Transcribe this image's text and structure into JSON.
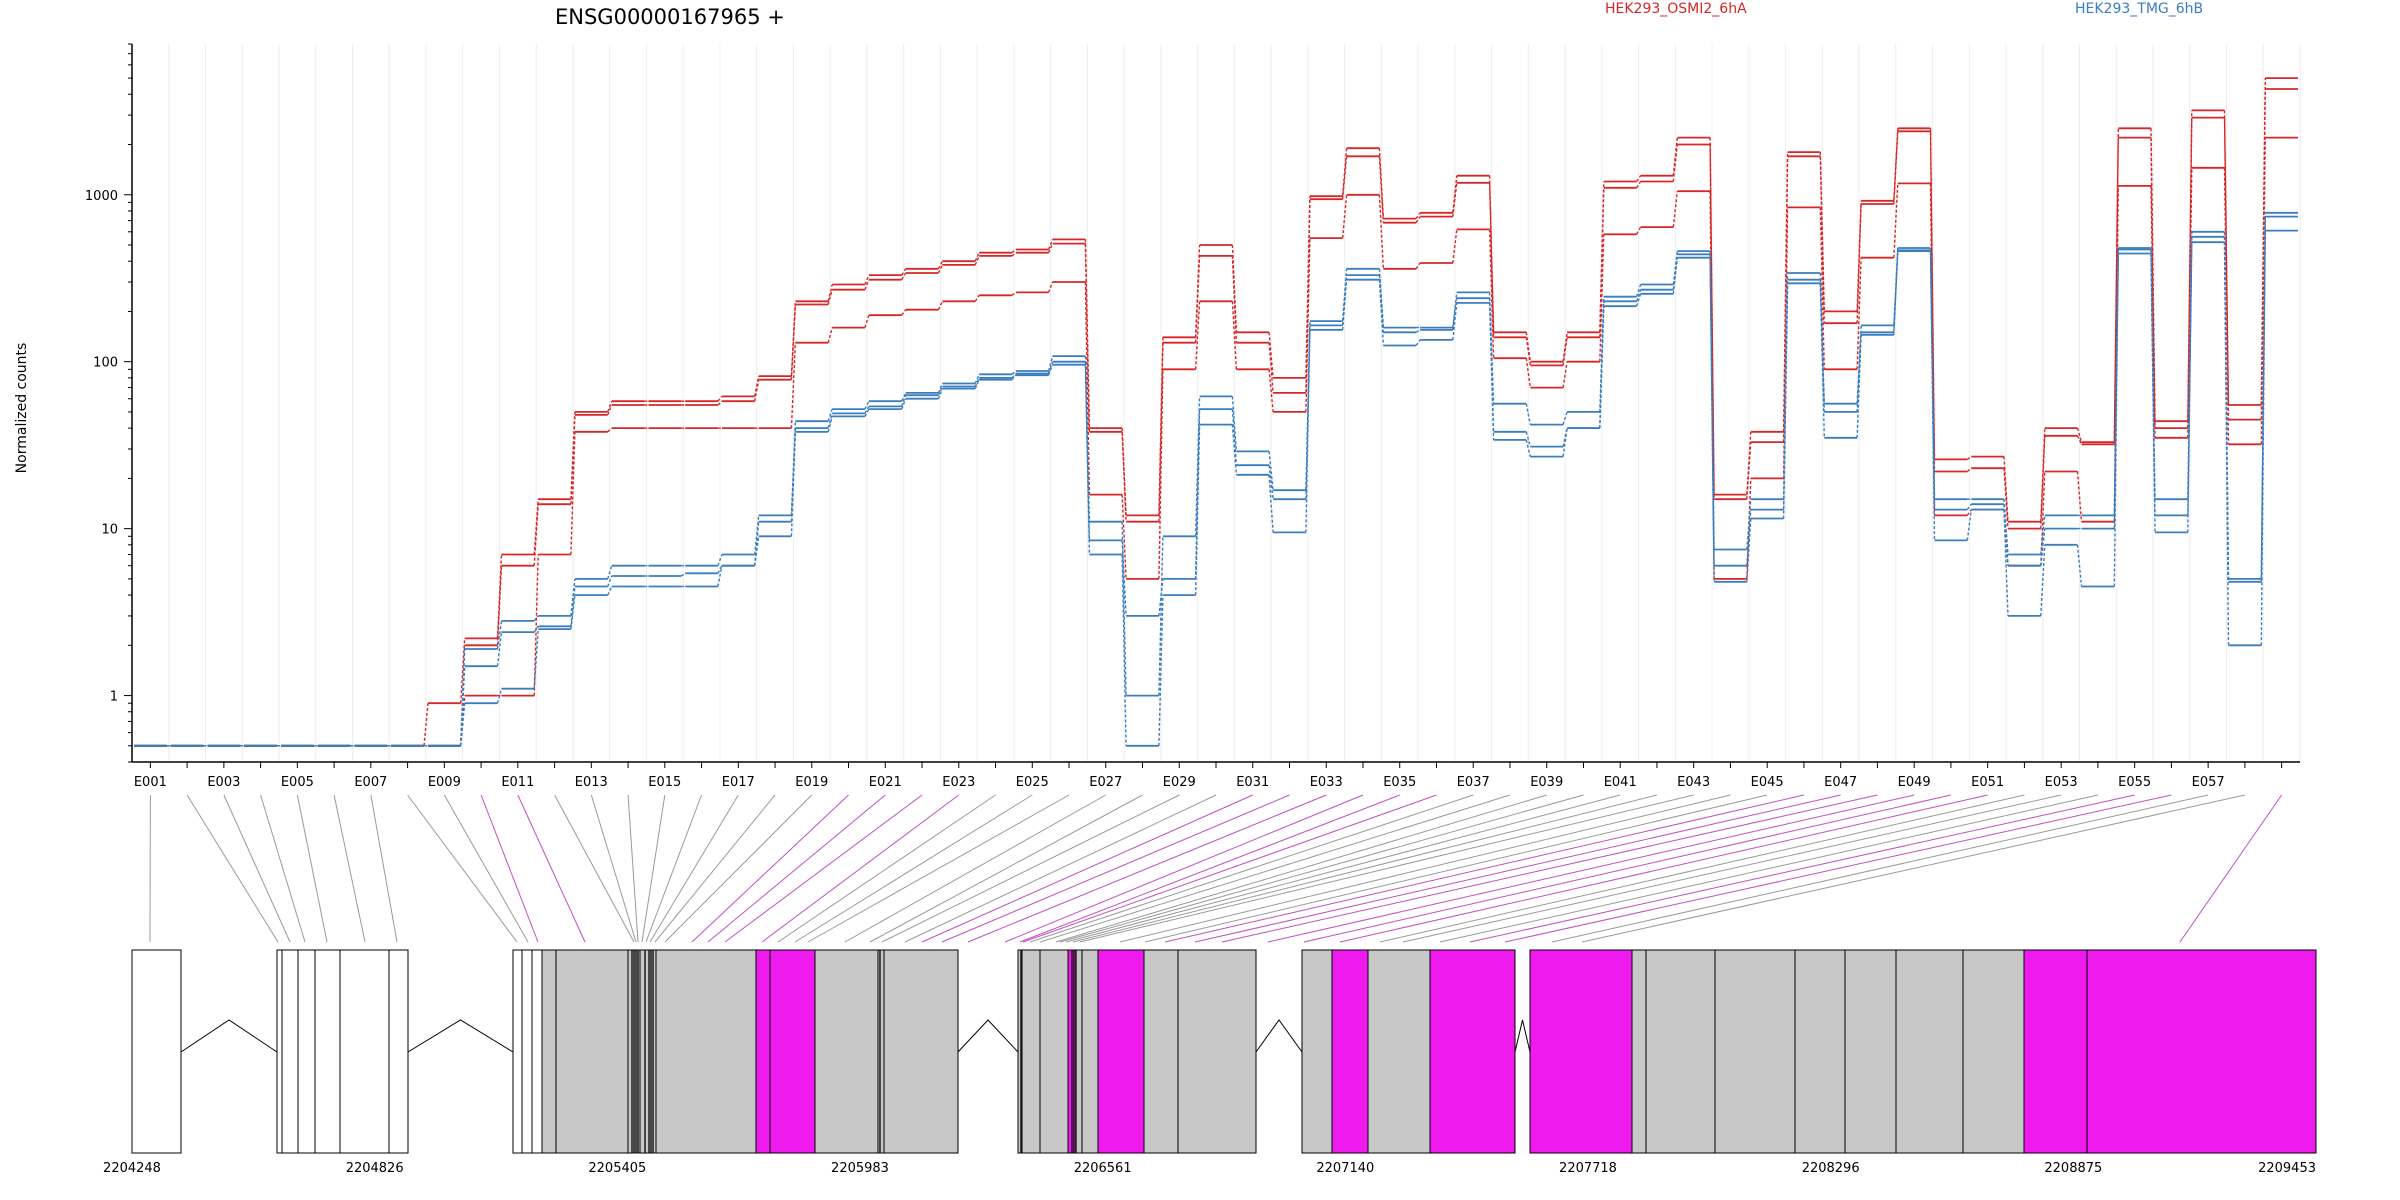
{
  "chart_data": {
    "type": "line",
    "title": "ENSG00000167965 +",
    "ylabel": "Normalized counts",
    "yscale": "log",
    "ylim": [
      0.4,
      8000
    ],
    "yticks": [
      1,
      10,
      100,
      1000
    ],
    "ytick_labels": [
      "1",
      "10",
      "100",
      "1000"
    ],
    "exon_labels": [
      "E001",
      "E003",
      "E005",
      "E007",
      "E009",
      "E011",
      "E013",
      "E015",
      "E017",
      "E019",
      "E021",
      "E023",
      "E025",
      "E027",
      "E029",
      "E031",
      "E033",
      "E035",
      "E037",
      "E039",
      "E041",
      "E043",
      "E045",
      "E047",
      "E049",
      "E051",
      "E053",
      "E055",
      "E057"
    ],
    "legend": [
      {
        "name": "HEK293_OSMI2_6hA",
        "color": "#d62728"
      },
      {
        "name": "HEK293_TMG_6hB",
        "color": "#3a7ebf"
      }
    ],
    "series": [
      {
        "group": "HEK293_OSMI2_6hA",
        "values": [
          0.5,
          0.5,
          0.5,
          0.5,
          0.5,
          0.5,
          0.5,
          0.5,
          0.9,
          2.2,
          7,
          15,
          50,
          58,
          58,
          58,
          62,
          82,
          230,
          290,
          330,
          360,
          400,
          450,
          470,
          540,
          40,
          12,
          140,
          500,
          150,
          80,
          980,
          1900,
          720,
          780,
          1300,
          150,
          100,
          150,
          1200,
          1300,
          2200,
          16,
          38,
          1800,
          200,
          920,
          2500,
          26,
          27,
          11,
          40,
          33,
          2500,
          44,
          3200,
          55,
          5000
        ]
      },
      {
        "group": "HEK293_OSMI2_6hA",
        "values": [
          0.5,
          0.5,
          0.5,
          0.5,
          0.5,
          0.5,
          0.5,
          0.5,
          0.5,
          2,
          6,
          14,
          48,
          55,
          55,
          55,
          58,
          78,
          220,
          270,
          310,
          340,
          380,
          430,
          450,
          510,
          38,
          11,
          130,
          430,
          130,
          65,
          940,
          1700,
          680,
          740,
          1180,
          140,
          95,
          140,
          1100,
          1200,
          2000,
          15,
          33,
          1700,
          170,
          880,
          2400,
          22,
          23,
          10,
          36,
          32,
          2200,
          40,
          2900,
          45,
          4300
        ]
      },
      {
        "group": "HEK293_OSMI2_6hA",
        "values": [
          0.5,
          0.5,
          0.5,
          0.5,
          0.5,
          0.5,
          0.5,
          0.5,
          0.5,
          1,
          1,
          7,
          38,
          40,
          40,
          40,
          40,
          40,
          130,
          160,
          190,
          205,
          230,
          250,
          260,
          300,
          16,
          5,
          90,
          230,
          90,
          50,
          550,
          1000,
          360,
          390,
          620,
          105,
          70,
          100,
          580,
          640,
          1050,
          5,
          20,
          840,
          90,
          420,
          1170,
          12,
          13,
          6,
          22,
          11,
          1130,
          35,
          1450,
          32,
          2200
        ]
      },
      {
        "group": "HEK293_TMG_6hB",
        "values": [
          0.5,
          0.5,
          0.5,
          0.5,
          0.5,
          0.5,
          0.5,
          0.5,
          0.5,
          1.9,
          2.8,
          3,
          5,
          6,
          6,
          6,
          7,
          12,
          44,
          52,
          58,
          65,
          74,
          84,
          88,
          108,
          11,
          1,
          9,
          62,
          29,
          17,
          175,
          360,
          160,
          160,
          260,
          56,
          42,
          50,
          245,
          290,
          460,
          7.5,
          15,
          340,
          56,
          165,
          480,
          15,
          15,
          7,
          12,
          12,
          480,
          15,
          600,
          5,
          780
        ]
      },
      {
        "group": "HEK293_TMG_6hB",
        "values": [
          0.5,
          0.5,
          0.5,
          0.5,
          0.5,
          0.5,
          0.5,
          0.5,
          0.5,
          1.5,
          2.4,
          2.6,
          4.5,
          5.2,
          5.2,
          5.4,
          6,
          11,
          40,
          49,
          54,
          63,
          71,
          80,
          85,
          100,
          8.5,
          3,
          5,
          52,
          24,
          15,
          165,
          330,
          150,
          155,
          240,
          38,
          31,
          40,
          230,
          270,
          440,
          6,
          13,
          310,
          50,
          150,
          465,
          13,
          14,
          6,
          10,
          10,
          470,
          12,
          560,
          4.8,
          740
        ]
      },
      {
        "group": "HEK293_TMG_6hB",
        "values": [
          0.5,
          0.5,
          0.5,
          0.5,
          0.5,
          0.5,
          0.5,
          0.5,
          0.5,
          0.9,
          1.1,
          2.5,
          4,
          4.5,
          4.5,
          4.5,
          6,
          9,
          38,
          47,
          52,
          60,
          69,
          78,
          83,
          96,
          7,
          0.5,
          4,
          42,
          21,
          9.5,
          155,
          310,
          125,
          135,
          225,
          34,
          27,
          40,
          215,
          255,
          420,
          4.8,
          11.5,
          295,
          35,
          145,
          460,
          8.5,
          13,
          3,
          8,
          4.5,
          445,
          9.5,
          520,
          2,
          610
        ]
      }
    ]
  },
  "gene_model": {
    "coord_labels": [
      "2204248",
      "2204826",
      "2205405",
      "2205983",
      "2206561",
      "2207140",
      "2207718",
      "2208296",
      "2208875",
      "2209453"
    ],
    "colors": {
      "constitutive": "#c8c8c8",
      "highlight": "#ee1aee",
      "connector_gray": "#9a9a9a",
      "connector_magenta": "#c050c0"
    }
  }
}
